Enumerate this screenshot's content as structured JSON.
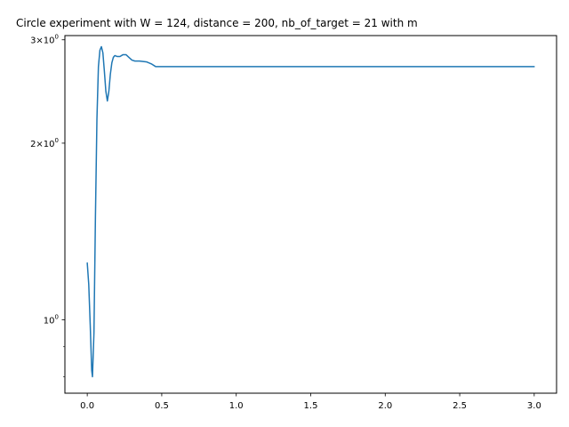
{
  "chart_data": {
    "type": "line",
    "title": "Circle experiment with W = 124, distance = 200, nb_of_target = 21 with m",
    "xlabel": "",
    "ylabel": "",
    "yscale": "log",
    "grid": false,
    "xlim": [
      -0.15,
      3.15
    ],
    "ylim": [
      0.75,
      3.05
    ],
    "x_ticks": [
      {
        "value": 0.0,
        "label": "0.0"
      },
      {
        "value": 0.5,
        "label": "0.5"
      },
      {
        "value": 1.0,
        "label": "1.0"
      },
      {
        "value": 1.5,
        "label": "1.5"
      },
      {
        "value": 2.0,
        "label": "2.0"
      },
      {
        "value": 2.5,
        "label": "2.5"
      },
      {
        "value": 3.0,
        "label": "3.0"
      }
    ],
    "y_major_ticks": [
      {
        "value": 1,
        "base": "10",
        "exp": "0"
      },
      {
        "value": 2,
        "base": "2×10",
        "exp": "0"
      },
      {
        "value": 3,
        "base": "3×10",
        "exp": "0"
      }
    ],
    "y_minor_ticks": [
      0.8,
      0.9
    ],
    "series": [
      {
        "color": "#1f77b4",
        "x": [
          0.0,
          0.01,
          0.02,
          0.03,
          0.035,
          0.045,
          0.055,
          0.065,
          0.075,
          0.085,
          0.095,
          0.105,
          0.115,
          0.125,
          0.135,
          0.145,
          0.155,
          0.165,
          0.175,
          0.185,
          0.2,
          0.22,
          0.24,
          0.26,
          0.28,
          0.3,
          0.32,
          0.35,
          0.4,
          0.43,
          0.46,
          0.5,
          1.0,
          1.5,
          2.0,
          2.5,
          3.0
        ],
        "y": [
          1.25,
          1.15,
          0.98,
          0.82,
          0.8,
          0.95,
          1.5,
          2.2,
          2.7,
          2.88,
          2.92,
          2.85,
          2.65,
          2.45,
          2.36,
          2.45,
          2.62,
          2.74,
          2.8,
          2.82,
          2.81,
          2.81,
          2.83,
          2.83,
          2.8,
          2.77,
          2.76,
          2.76,
          2.75,
          2.73,
          2.7,
          2.7,
          2.7,
          2.7,
          2.7,
          2.7,
          2.7
        ]
      }
    ]
  }
}
